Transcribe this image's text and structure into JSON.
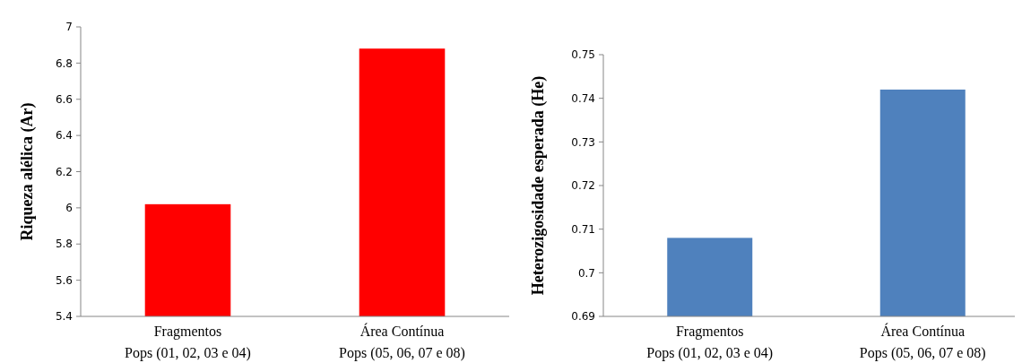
{
  "chart_data": [
    {
      "type": "bar",
      "ylabel": "Riqueza alélica (Ar)",
      "categories": [
        "Fragmentos\nPops (01, 02, 03 e 04)",
        "Área Contínua\nPops (05, 06, 07 e 08)"
      ],
      "values": [
        6.02,
        6.88
      ],
      "color": "#ff0000",
      "ylim": [
        5.4,
        7
      ],
      "yticks": [
        5.4,
        5.6,
        5.8,
        6,
        6.2,
        6.4,
        6.6,
        6.8,
        7
      ],
      "grid": false
    },
    {
      "type": "bar",
      "ylabel": "Heterozigosidade esperada (He)",
      "categories": [
        "Fragmentos\nPops (01, 02, 03 e 04)",
        "Área Contínua\nPops (05, 06, 07 e 08)"
      ],
      "values": [
        0.708,
        0.742
      ],
      "color": "#4f81bd",
      "ylim": [
        0.69,
        0.75
      ],
      "yticks": [
        0.69,
        0.7,
        0.71,
        0.72,
        0.73,
        0.74,
        0.75
      ],
      "grid": false
    }
  ]
}
